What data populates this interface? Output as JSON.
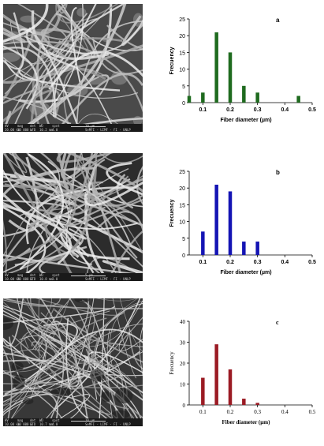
{
  "sem_images": [
    {
      "header": [
        "HV",
        "mag",
        "det",
        "WD",
        "spot"
      ],
      "values": [
        "20.00 kV",
        "10 000 x",
        "LFD",
        "10.2 mm",
        "4.0"
      ],
      "scale": "10 µm",
      "lab": "SeMFI - LIMF - FI - UNLP",
      "texture": "dense"
    },
    {
      "header": [
        "HV",
        "mag",
        "det",
        "WD",
        "spot"
      ],
      "values": [
        "10.00 kV",
        "20 000 x",
        "ETD",
        "10.8 mm",
        "3.0"
      ],
      "scale": "5 µm",
      "lab": "SeMFI - LIMF - FI - UNLP",
      "texture": "mesh"
    },
    {
      "header": [
        "HV",
        "mag",
        "det",
        "WD",
        "spot"
      ],
      "values": [
        "10.00 kV",
        "10 000 x",
        "ETD",
        "10.7 mm",
        "4.0"
      ],
      "scale": "10 µm",
      "lab": "SeMFI - LIMF - FI - UNLP",
      "texture": "web"
    }
  ],
  "chart_data": [
    {
      "type": "bar",
      "panel_label": "a",
      "color": "#1f6b1f",
      "xlabel": "Fiber diameter (µm)",
      "ylabel": "Frecuency",
      "xlim": [
        0.05,
        0.5
      ],
      "ylim": [
        0,
        25
      ],
      "xticks": [
        0.1,
        0.2,
        0.3,
        0.4,
        0.5
      ],
      "xtick_labels": [
        "0.1",
        "0.2",
        "0.3",
        "0.4",
        "0.5"
      ],
      "yticks": [
        0,
        5,
        10,
        15,
        20,
        25
      ],
      "ytick_labels": [
        "0",
        "5",
        "10",
        "15",
        "20",
        "25"
      ],
      "x": [
        0.05,
        0.1,
        0.15,
        0.2,
        0.25,
        0.3,
        0.45
      ],
      "values": [
        2,
        3,
        21,
        15,
        5,
        3,
        2
      ]
    },
    {
      "type": "bar",
      "panel_label": "b",
      "color": "#1414b4",
      "xlabel": "Fiber diameter (µm)",
      "ylabel": "Frecuency",
      "xlim": [
        0.05,
        0.5
      ],
      "ylim": [
        0,
        25
      ],
      "xticks": [
        0.1,
        0.2,
        0.3,
        0.4,
        0.5
      ],
      "xtick_labels": [
        "0.1",
        "0.2",
        "0.3",
        "0.4",
        "0.5"
      ],
      "yticks": [
        0,
        5,
        10,
        15,
        20,
        25
      ],
      "ytick_labels": [
        "0",
        "5",
        "10",
        "15",
        "20",
        "25"
      ],
      "x": [
        0.1,
        0.15,
        0.2,
        0.25,
        0.3
      ],
      "values": [
        7,
        21,
        19,
        4,
        4
      ]
    },
    {
      "type": "bar",
      "panel_label": "c",
      "color": "#9b1b24",
      "xlabel": "Fiber diameter (µm)",
      "ylabel": "Frecuency",
      "xlim": [
        0.05,
        0.5
      ],
      "ylim": [
        0,
        40
      ],
      "xticks": [
        0.1,
        0.2,
        0.3,
        0.4,
        0.5
      ],
      "xtick_labels": [
        "0.1",
        "0.2",
        "0.3",
        "0.4",
        "0.5"
      ],
      "yticks": [
        0,
        10,
        20,
        30,
        40
      ],
      "ytick_labels": [
        "0",
        "10",
        "20",
        "30",
        "40"
      ],
      "x": [
        0.1,
        0.15,
        0.2,
        0.25,
        0.3
      ],
      "values": [
        13,
        29,
        17,
        3,
        1
      ]
    }
  ]
}
